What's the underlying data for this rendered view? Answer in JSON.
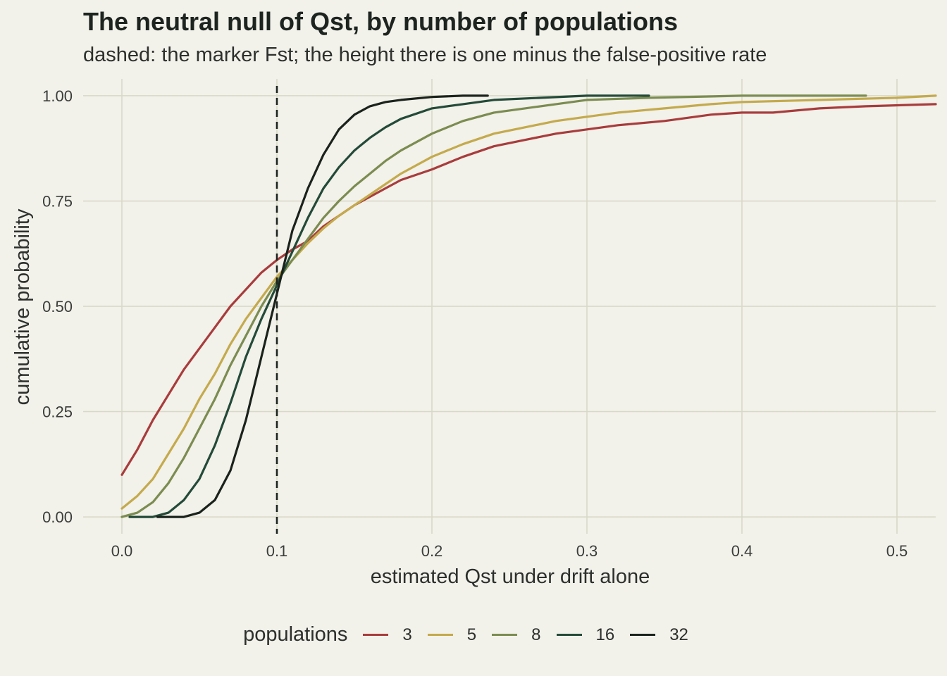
{
  "chart_data": {
    "type": "line",
    "title": "The neutral null of Qst, by number of populations",
    "subtitle": "dashed: the marker Fst; the height there is one minus the false-positive rate",
    "xlabel": "estimated Qst under drift alone",
    "ylabel": "cumulative probability",
    "xlim": [
      -0.025,
      0.525
    ],
    "ylim": [
      -0.04,
      1.04
    ],
    "x_ticks": [
      "0.0",
      "0.1",
      "0.2",
      "0.3",
      "0.4",
      "0.5"
    ],
    "y_ticks": [
      "0.00",
      "0.25",
      "0.50",
      "0.75",
      "1.00"
    ],
    "grid": true,
    "reference_line": {
      "x": 0.1,
      "style": "dashed"
    },
    "legend": {
      "title": "populations",
      "position": "bottom"
    },
    "series": [
      {
        "name": "3",
        "color": "#a83c3c",
        "points": [
          [
            0.0,
            0.1
          ],
          [
            0.01,
            0.16
          ],
          [
            0.02,
            0.23
          ],
          [
            0.03,
            0.29
          ],
          [
            0.04,
            0.35
          ],
          [
            0.05,
            0.4
          ],
          [
            0.06,
            0.45
          ],
          [
            0.07,
            0.5
          ],
          [
            0.08,
            0.54
          ],
          [
            0.09,
            0.58
          ],
          [
            0.1,
            0.61
          ],
          [
            0.11,
            0.635
          ],
          [
            0.12,
            0.655
          ],
          [
            0.13,
            0.69
          ],
          [
            0.14,
            0.715
          ],
          [
            0.15,
            0.74
          ],
          [
            0.16,
            0.76
          ],
          [
            0.17,
            0.78
          ],
          [
            0.18,
            0.8
          ],
          [
            0.2,
            0.825
          ],
          [
            0.22,
            0.855
          ],
          [
            0.24,
            0.88
          ],
          [
            0.26,
            0.895
          ],
          [
            0.28,
            0.91
          ],
          [
            0.3,
            0.92
          ],
          [
            0.32,
            0.93
          ],
          [
            0.35,
            0.94
          ],
          [
            0.38,
            0.955
          ],
          [
            0.4,
            0.96
          ],
          [
            0.42,
            0.96
          ],
          [
            0.45,
            0.97
          ],
          [
            0.48,
            0.975
          ],
          [
            0.525,
            0.98
          ]
        ]
      },
      {
        "name": "5",
        "color": "#c4aa4c",
        "points": [
          [
            0.0,
            0.02
          ],
          [
            0.01,
            0.05
          ],
          [
            0.02,
            0.09
          ],
          [
            0.03,
            0.15
          ],
          [
            0.04,
            0.21
          ],
          [
            0.05,
            0.28
          ],
          [
            0.06,
            0.34
          ],
          [
            0.07,
            0.41
          ],
          [
            0.08,
            0.47
          ],
          [
            0.09,
            0.52
          ],
          [
            0.1,
            0.57
          ],
          [
            0.11,
            0.61
          ],
          [
            0.12,
            0.65
          ],
          [
            0.13,
            0.685
          ],
          [
            0.14,
            0.715
          ],
          [
            0.15,
            0.74
          ],
          [
            0.16,
            0.765
          ],
          [
            0.17,
            0.79
          ],
          [
            0.18,
            0.815
          ],
          [
            0.2,
            0.855
          ],
          [
            0.22,
            0.885
          ],
          [
            0.24,
            0.91
          ],
          [
            0.26,
            0.925
          ],
          [
            0.28,
            0.94
          ],
          [
            0.3,
            0.95
          ],
          [
            0.32,
            0.96
          ],
          [
            0.35,
            0.97
          ],
          [
            0.38,
            0.98
          ],
          [
            0.4,
            0.985
          ],
          [
            0.45,
            0.99
          ],
          [
            0.5,
            0.995
          ],
          [
            0.525,
            1.0
          ]
        ]
      },
      {
        "name": "8",
        "color": "#7b8c50",
        "points": [
          [
            0.0,
            0.0
          ],
          [
            0.01,
            0.01
          ],
          [
            0.02,
            0.035
          ],
          [
            0.03,
            0.08
          ],
          [
            0.04,
            0.14
          ],
          [
            0.05,
            0.21
          ],
          [
            0.06,
            0.28
          ],
          [
            0.07,
            0.36
          ],
          [
            0.08,
            0.43
          ],
          [
            0.09,
            0.5
          ],
          [
            0.1,
            0.56
          ],
          [
            0.11,
            0.61
          ],
          [
            0.12,
            0.66
          ],
          [
            0.13,
            0.71
          ],
          [
            0.14,
            0.75
          ],
          [
            0.15,
            0.785
          ],
          [
            0.16,
            0.815
          ],
          [
            0.17,
            0.845
          ],
          [
            0.18,
            0.87
          ],
          [
            0.2,
            0.91
          ],
          [
            0.22,
            0.94
          ],
          [
            0.24,
            0.96
          ],
          [
            0.26,
            0.97
          ],
          [
            0.28,
            0.98
          ],
          [
            0.3,
            0.99
          ],
          [
            0.34,
            0.995
          ],
          [
            0.4,
            1.0
          ],
          [
            0.48,
            1.0
          ]
        ]
      },
      {
        "name": "16",
        "color": "#234a38",
        "points": [
          [
            0.005,
            0.0
          ],
          [
            0.02,
            0.0
          ],
          [
            0.03,
            0.01
          ],
          [
            0.04,
            0.04
          ],
          [
            0.05,
            0.09
          ],
          [
            0.06,
            0.17
          ],
          [
            0.07,
            0.27
          ],
          [
            0.08,
            0.38
          ],
          [
            0.09,
            0.47
          ],
          [
            0.1,
            0.55
          ],
          [
            0.11,
            0.63
          ],
          [
            0.12,
            0.71
          ],
          [
            0.13,
            0.78
          ],
          [
            0.14,
            0.83
          ],
          [
            0.15,
            0.87
          ],
          [
            0.16,
            0.9
          ],
          [
            0.17,
            0.925
          ],
          [
            0.18,
            0.945
          ],
          [
            0.2,
            0.97
          ],
          [
            0.22,
            0.98
          ],
          [
            0.24,
            0.99
          ],
          [
            0.27,
            0.995
          ],
          [
            0.3,
            1.0
          ],
          [
            0.34,
            1.0
          ]
        ]
      },
      {
        "name": "32",
        "color": "#1a221c",
        "points": [
          [
            0.023,
            0.0
          ],
          [
            0.04,
            0.0
          ],
          [
            0.05,
            0.01
          ],
          [
            0.06,
            0.04
          ],
          [
            0.07,
            0.11
          ],
          [
            0.08,
            0.23
          ],
          [
            0.09,
            0.38
          ],
          [
            0.1,
            0.53
          ],
          [
            0.11,
            0.68
          ],
          [
            0.12,
            0.78
          ],
          [
            0.13,
            0.86
          ],
          [
            0.14,
            0.92
          ],
          [
            0.15,
            0.955
          ],
          [
            0.16,
            0.975
          ],
          [
            0.17,
            0.985
          ],
          [
            0.18,
            0.99
          ],
          [
            0.2,
            0.997
          ],
          [
            0.22,
            1.0
          ],
          [
            0.236,
            1.0
          ]
        ]
      }
    ]
  }
}
